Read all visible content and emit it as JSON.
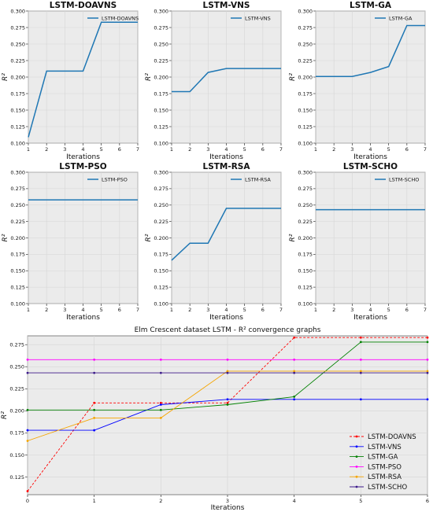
{
  "chart_data": [
    {
      "type": "line",
      "title": "LSTM-DOAVNS",
      "xlabel": "Iterations",
      "ylabel": "R²",
      "x": [
        1,
        2,
        3,
        4,
        5,
        6,
        7
      ],
      "xlim": [
        1,
        7
      ],
      "ylim": [
        0.1,
        0.3
      ],
      "yticks": [
        "0.100",
        "0.125",
        "0.150",
        "0.175",
        "0.200",
        "0.225",
        "0.250",
        "0.275",
        "0.300"
      ],
      "series": [
        {
          "name": "LSTM-DOAVNS",
          "color": "#1f77b4",
          "values": [
            0.109,
            0.209,
            0.209,
            0.209,
            0.283,
            0.283,
            0.283
          ]
        }
      ],
      "legend": "top-right",
      "grid": true
    },
    {
      "type": "line",
      "title": "LSTM-VNS",
      "xlabel": "Iterations",
      "ylabel": "R²",
      "x": [
        1,
        2,
        3,
        4,
        5,
        6,
        7
      ],
      "xlim": [
        1,
        7
      ],
      "ylim": [
        0.1,
        0.3
      ],
      "yticks": [
        "0.100",
        "0.125",
        "0.150",
        "0.175",
        "0.200",
        "0.225",
        "0.250",
        "0.275",
        "0.300"
      ],
      "series": [
        {
          "name": "LSTM-VNS",
          "color": "#1f77b4",
          "values": [
            0.178,
            0.178,
            0.207,
            0.213,
            0.213,
            0.213,
            0.213
          ]
        }
      ],
      "legend": "top-right",
      "grid": true
    },
    {
      "type": "line",
      "title": "LSTM-GA",
      "xlabel": "Iterations",
      "ylabel": "R²",
      "x": [
        1,
        2,
        3,
        4,
        5,
        6,
        7
      ],
      "xlim": [
        1,
        7
      ],
      "ylim": [
        0.1,
        0.3
      ],
      "yticks": [
        "0.100",
        "0.125",
        "0.150",
        "0.175",
        "0.200",
        "0.225",
        "0.250",
        "0.275",
        "0.300"
      ],
      "series": [
        {
          "name": "LSTM-GA",
          "color": "#1f77b4",
          "values": [
            0.201,
            0.201,
            0.201,
            0.207,
            0.216,
            0.278,
            0.278
          ]
        }
      ],
      "legend": "top-right",
      "grid": true
    },
    {
      "type": "line",
      "title": "LSTM-PSO",
      "xlabel": "Iterations",
      "ylabel": "R²",
      "x": [
        1,
        2,
        3,
        4,
        5,
        6,
        7
      ],
      "xlim": [
        1,
        7
      ],
      "ylim": [
        0.1,
        0.3
      ],
      "yticks": [
        "0.100",
        "0.125",
        "0.150",
        "0.175",
        "0.200",
        "0.225",
        "0.250",
        "0.275",
        "0.300"
      ],
      "series": [
        {
          "name": "LSTM-PSO",
          "color": "#1f77b4",
          "values": [
            0.258,
            0.258,
            0.258,
            0.258,
            0.258,
            0.258,
            0.258
          ]
        }
      ],
      "legend": "top-right",
      "grid": true
    },
    {
      "type": "line",
      "title": "LSTM-RSA",
      "xlabel": "Iterations",
      "ylabel": "R²",
      "x": [
        1,
        2,
        3,
        4,
        5,
        6,
        7
      ],
      "xlim": [
        1,
        7
      ],
      "ylim": [
        0.1,
        0.3
      ],
      "yticks": [
        "0.100",
        "0.125",
        "0.150",
        "0.175",
        "0.200",
        "0.225",
        "0.250",
        "0.275",
        "0.300"
      ],
      "series": [
        {
          "name": "LSTM-RSA",
          "color": "#1f77b4",
          "values": [
            0.166,
            0.192,
            0.192,
            0.245,
            0.245,
            0.245,
            0.245
          ]
        }
      ],
      "legend": "top-right",
      "grid": true
    },
    {
      "type": "line",
      "title": "LSTM-SCHO",
      "xlabel": "Iterations",
      "ylabel": "R²",
      "x": [
        1,
        2,
        3,
        4,
        5,
        6,
        7
      ],
      "xlim": [
        1,
        7
      ],
      "ylim": [
        0.1,
        0.3
      ],
      "yticks": [
        "0.100",
        "0.125",
        "0.150",
        "0.175",
        "0.200",
        "0.225",
        "0.250",
        "0.275",
        "0.300"
      ],
      "series": [
        {
          "name": "LSTM-SCHO",
          "color": "#1f77b4",
          "values": [
            0.243,
            0.243,
            0.243,
            0.243,
            0.243,
            0.243,
            0.243
          ]
        }
      ],
      "legend": "top-right",
      "grid": true
    },
    {
      "type": "line",
      "title": "Elm Crescent dataset LSTM -  R² convergence graphs",
      "xlabel": "Iterations",
      "ylabel": "R²",
      "x": [
        0,
        1,
        2,
        3,
        4,
        5,
        6
      ],
      "xlim": [
        0,
        6
      ],
      "ylim": [
        0.105,
        0.285
      ],
      "yticks": [
        "0.125",
        "0.150",
        "0.175",
        "0.200",
        "0.225",
        "0.250",
        "0.275"
      ],
      "legend": "bottom-right",
      "grid": true,
      "series": [
        {
          "name": "LSTM-DOAVNS",
          "color": "#ff0000",
          "dashed": true,
          "values": [
            0.109,
            0.209,
            0.209,
            0.209,
            0.283,
            0.283,
            0.283
          ]
        },
        {
          "name": "LSTM-VNS",
          "color": "#0000ff",
          "values": [
            0.178,
            0.178,
            0.207,
            0.213,
            0.213,
            0.213,
            0.213
          ]
        },
        {
          "name": "LSTM-GA",
          "color": "#008000",
          "values": [
            0.201,
            0.201,
            0.201,
            0.207,
            0.216,
            0.278,
            0.278
          ]
        },
        {
          "name": "LSTM-PSO",
          "color": "#ff00ff",
          "values": [
            0.258,
            0.258,
            0.258,
            0.258,
            0.258,
            0.258,
            0.258
          ]
        },
        {
          "name": "LSTM-RSA",
          "color": "#f5a500",
          "values": [
            0.166,
            0.192,
            0.192,
            0.245,
            0.245,
            0.245,
            0.245
          ]
        },
        {
          "name": "LSTM-SCHO",
          "color": "#3c1a8a",
          "values": [
            0.243,
            0.243,
            0.243,
            0.243,
            0.243,
            0.243,
            0.243
          ]
        }
      ]
    }
  ]
}
